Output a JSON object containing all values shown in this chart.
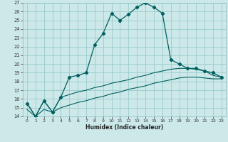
{
  "xlabel": "Humidex (Indice chaleur)",
  "bg_color": "#cce8e8",
  "grid_color": "#99cccc",
  "line_color": "#006060",
  "xlim": [
    -0.5,
    23.5
  ],
  "ylim": [
    14,
    27
  ],
  "xticks": [
    0,
    1,
    2,
    3,
    4,
    5,
    6,
    7,
    8,
    9,
    10,
    11,
    12,
    13,
    14,
    15,
    16,
    17,
    18,
    19,
    20,
    21,
    22,
    23
  ],
  "yticks": [
    14,
    15,
    16,
    17,
    18,
    19,
    20,
    21,
    22,
    23,
    24,
    25,
    26,
    27
  ],
  "line1_x": [
    0,
    1,
    2,
    3,
    4,
    5,
    6,
    7,
    8,
    9,
    10,
    11,
    12,
    13,
    14,
    15,
    16,
    17,
    18,
    19,
    20,
    21,
    22,
    23
  ],
  "line1_y": [
    15.5,
    14.0,
    15.8,
    14.5,
    16.2,
    18.5,
    18.7,
    19.0,
    22.2,
    23.5,
    25.8,
    25.0,
    25.7,
    26.5,
    27.0,
    26.5,
    25.8,
    20.5,
    20.0,
    19.5,
    19.5,
    19.2,
    19.0,
    18.5
  ],
  "line2_x": [
    0,
    1,
    2,
    3,
    4,
    5,
    6,
    7,
    8,
    9,
    10,
    11,
    12,
    13,
    14,
    15,
    16,
    17,
    18,
    19,
    20,
    21,
    22,
    23
  ],
  "line2_y": [
    15.5,
    14.0,
    15.8,
    14.5,
    16.2,
    16.5,
    16.8,
    17.0,
    17.3,
    17.5,
    17.8,
    18.0,
    18.2,
    18.5,
    18.7,
    19.0,
    19.2,
    19.4,
    19.5,
    19.5,
    19.4,
    19.2,
    18.7,
    18.5
  ],
  "line3_x": [
    0,
    1,
    2,
    3,
    4,
    5,
    6,
    7,
    8,
    9,
    10,
    11,
    12,
    13,
    14,
    15,
    16,
    17,
    18,
    19,
    20,
    21,
    22,
    23
  ],
  "line3_y": [
    14.8,
    14.0,
    14.8,
    14.5,
    15.0,
    15.3,
    15.6,
    15.8,
    16.1,
    16.3,
    16.6,
    16.8,
    17.1,
    17.3,
    17.5,
    17.8,
    18.0,
    18.2,
    18.4,
    18.5,
    18.5,
    18.4,
    18.3,
    18.3
  ]
}
